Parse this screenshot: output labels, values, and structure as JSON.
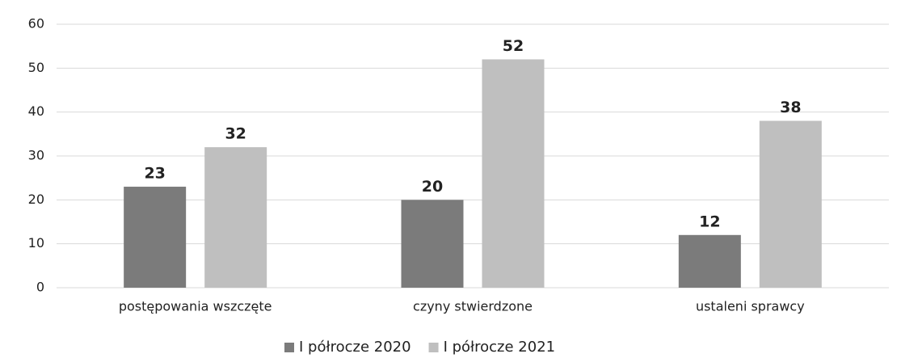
{
  "chart_data": {
    "type": "bar",
    "categories": [
      "postępowania wszczęte",
      "czyny stwierdzone",
      "ustaleni sprawcy"
    ],
    "series": [
      {
        "name": "I półrocze 2020",
        "color": "#7b7b7b",
        "values": [
          23,
          20,
          12
        ]
      },
      {
        "name": "I półrocze 2021",
        "color": "#bfbfbf",
        "values": [
          32,
          52,
          38
        ]
      }
    ],
    "ylim": [
      0,
      60
    ],
    "yticks": [
      0,
      10,
      20,
      30,
      40,
      50,
      60
    ],
    "grid": true,
    "legend": "bottom"
  }
}
